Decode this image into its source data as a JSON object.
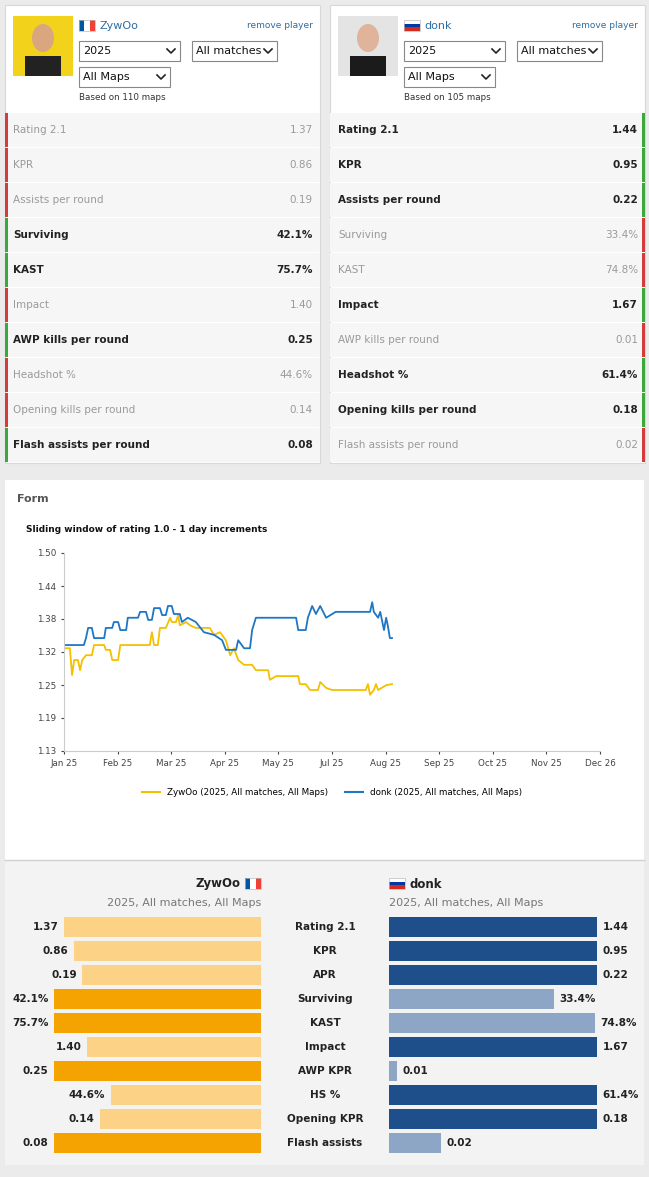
{
  "players": [
    {
      "name": "ZywOo",
      "remove": "remove player",
      "filters": [
        "2025",
        "All matches",
        "All Maps"
      ],
      "note": "Based on 110 maps",
      "stats": [
        [
          "Rating 2.1",
          "1.37"
        ],
        [
          "KPR",
          "0.86"
        ],
        [
          "Assists per round",
          "0.19"
        ],
        [
          "Surviving",
          "42.1%"
        ],
        [
          "KAST",
          "75.7%"
        ],
        [
          "Impact",
          "1.40"
        ],
        [
          "AWP kills per round",
          "0.25"
        ],
        [
          "Headshot %",
          "44.6%"
        ],
        [
          "Opening kills per round",
          "0.14"
        ],
        [
          "Flash assists per round",
          "0.08"
        ]
      ]
    },
    {
      "name": "donk",
      "remove": "remove player",
      "filters": [
        "2025",
        "All matches",
        "All Maps"
      ],
      "note": "Based on 105 maps",
      "stats": [
        [
          "Rating 2.1",
          "1.44"
        ],
        [
          "KPR",
          "0.95"
        ],
        [
          "Assists per round",
          "0.22"
        ],
        [
          "Surviving",
          "33.4%"
        ],
        [
          "KAST",
          "74.8%"
        ],
        [
          "Impact",
          "1.67"
        ],
        [
          "AWP kills per round",
          "0.01"
        ],
        [
          "Headshot %",
          "61.4%"
        ],
        [
          "Opening kills per round",
          "0.18"
        ],
        [
          "Flash assists per round",
          "0.02"
        ]
      ]
    }
  ],
  "section": "Form",
  "chart_data": {
    "type": "line",
    "title": "Sliding window of rating 1.0 - 1 day increments",
    "xlim": [
      0,
      10
    ],
    "xticks": [
      {
        "value": 0,
        "label": "Jan 25"
      },
      {
        "value": 1,
        "label": "Feb 25"
      },
      {
        "value": 2,
        "label": "Mar 25"
      },
      {
        "value": 3,
        "label": "Apr 25"
      },
      {
        "value": 4,
        "label": "May 25"
      },
      {
        "value": 5,
        "label": "Jul 25"
      },
      {
        "value": 6,
        "label": "Aug 25"
      },
      {
        "value": 7,
        "label": "Sep 25"
      },
      {
        "value": 8,
        "label": "Oct 25"
      },
      {
        "value": 9,
        "label": "Nov 25"
      },
      {
        "value": 10,
        "label": "Dec 26"
      }
    ],
    "ylim": [
      1.13,
      1.5
    ],
    "yticks": [
      1.13,
      {
        "value": 1.1917,
        "label": "1.19"
      },
      {
        "value": 1.2533,
        "label": "1.25"
      },
      {
        "value": 1.3155,
        "label": "1.32"
      },
      {
        "value": 1.3767,
        "label": "1.38"
      },
      {
        "value": 1.4383,
        "label": "1.44"
      },
      {
        "value": 1.5,
        "label": "1.50"
      }
    ],
    "grid": false,
    "legend": "lower center",
    "series": [
      {
        "name": "ZywOo (2025, All matches, All Maps)",
        "color": "#f5c000",
        "x": [
          0,
          0.11,
          0.15,
          0.19,
          0.26,
          0.3,
          0.34,
          0.41,
          0.52,
          0.56,
          0.75,
          0.78,
          0.86,
          0.9,
          1.01,
          1.05,
          1.6,
          1.64,
          1.68,
          1.75,
          1.79,
          1.9,
          1.98,
          2.01,
          2.09,
          2.13,
          2.16,
          2.28,
          2.35,
          2.46,
          2.72,
          2.8,
          2.91,
          3.02,
          3.1,
          3.17,
          3.25,
          3.36,
          3.51,
          3.58,
          3.81,
          3.84,
          3.96,
          4.37,
          4.4,
          4.51,
          4.59,
          4.74,
          4.78,
          4.89,
          5.0,
          5.63,
          5.67,
          5.71,
          5.78,
          5.82,
          5.86,
          6.01,
          6.12
        ],
        "values": [
          1.322,
          1.322,
          1.272,
          1.3,
          1.3,
          1.281,
          1.3,
          1.309,
          1.309,
          1.328,
          1.328,
          1.319,
          1.319,
          1.3,
          1.3,
          1.328,
          1.328,
          1.352,
          1.328,
          1.328,
          1.36,
          1.36,
          1.379,
          1.371,
          1.371,
          1.384,
          1.365,
          1.371,
          1.365,
          1.36,
          1.36,
          1.347,
          1.352,
          1.337,
          1.309,
          1.322,
          1.3,
          1.291,
          1.291,
          1.281,
          1.281,
          1.263,
          1.27,
          1.27,
          1.255,
          1.255,
          1.244,
          1.244,
          1.259,
          1.248,
          1.244,
          1.244,
          1.255,
          1.235,
          1.244,
          1.255,
          1.244,
          1.253,
          1.255
        ]
      },
      {
        "name": "donk (2025, All matches, All Maps)",
        "color": "#1f77c4",
        "x": [
          0,
          0.37,
          0.41,
          0.45,
          0.52,
          0.56,
          0.75,
          0.78,
          0.9,
          0.93,
          1.01,
          1.05,
          1.16,
          1.19,
          1.38,
          1.42,
          1.53,
          1.57,
          1.64,
          1.68,
          1.79,
          1.83,
          1.9,
          1.94,
          2.01,
          2.05,
          2.16,
          2.2,
          2.31,
          2.46,
          2.61,
          2.8,
          2.95,
          3.02,
          3.21,
          3.25,
          3.36,
          3.47,
          3.51,
          3.58,
          4.33,
          4.37,
          4.51,
          4.55,
          4.63,
          4.7,
          4.78,
          4.89,
          5.07,
          5.71,
          5.75,
          5.78,
          5.86,
          5.9,
          5.97,
          6.01,
          6.04,
          6.08,
          6.12
        ],
        "values": [
          1.328,
          1.328,
          1.341,
          1.36,
          1.36,
          1.341,
          1.341,
          1.36,
          1.36,
          1.371,
          1.371,
          1.356,
          1.356,
          1.379,
          1.379,
          1.39,
          1.39,
          1.375,
          1.375,
          1.397,
          1.397,
          1.384,
          1.384,
          1.401,
          1.401,
          1.386,
          1.386,
          1.371,
          1.379,
          1.371,
          1.352,
          1.347,
          1.337,
          1.319,
          1.319,
          1.337,
          1.322,
          1.322,
          1.356,
          1.379,
          1.379,
          1.356,
          1.356,
          1.379,
          1.401,
          1.386,
          1.401,
          1.379,
          1.39,
          1.39,
          1.408,
          1.39,
          1.379,
          1.39,
          1.356,
          1.379,
          1.365,
          1.341,
          1.341
        ]
      }
    ]
  },
  "comparison": {
    "subtitles": [
      "2025, All matches, All Maps",
      "2025, All matches, All Maps"
    ],
    "colors": [
      [
        "#f5a300",
        "#fbd286"
      ],
      [
        "#1f4f8a",
        "#8ea6c6"
      ]
    ],
    "rows": [
      {
        "label": "Rating 2.1",
        "values": [
          1.37,
          1.44
        ],
        "value_labels": [
          "1.37",
          "1.44"
        ],
        "xlim": [
          0,
          1.44
        ]
      },
      {
        "label": "KPR",
        "values": [
          0.86,
          0.95
        ],
        "value_labels": [
          "0.86",
          "0.95"
        ],
        "xlim": [
          0,
          0.95
        ]
      },
      {
        "label": "APR",
        "values": [
          0.19,
          0.22
        ],
        "value_labels": [
          "0.19",
          "0.22"
        ],
        "xlim": [
          0,
          0.22
        ]
      },
      {
        "label": "Surviving",
        "values": [
          42.1,
          33.4
        ],
        "value_labels": [
          "42.1%",
          "33.4%"
        ],
        "xlim": [
          0,
          42.1
        ]
      },
      {
        "label": "KAST",
        "values": [
          75.7,
          74.8
        ],
        "value_labels": [
          "75.7%",
          "74.8%"
        ],
        "xlim": [
          0,
          75.7
        ]
      },
      {
        "label": "Impact",
        "values": [
          1.4,
          1.67
        ],
        "value_labels": [
          "1.40",
          "1.67"
        ],
        "xlim": [
          0,
          1.67
        ]
      },
      {
        "label": "AWP KPR",
        "values": [
          0.25,
          0.01
        ],
        "value_labels": [
          "0.25",
          "0.01"
        ],
        "xlim": [
          0,
          0.25
        ]
      },
      {
        "label": "HS %",
        "values": [
          44.6,
          61.4
        ],
        "value_labels": [
          "44.6%",
          "61.4%"
        ],
        "xlim": [
          0,
          61.4
        ]
      },
      {
        "label": "Opening KPR",
        "values": [
          0.14,
          0.18
        ],
        "value_labels": [
          "0.14",
          "0.18"
        ],
        "xlim": [
          0,
          0.18
        ]
      },
      {
        "label": "Flash assists",
        "values": [
          0.08,
          0.02
        ],
        "value_labels": [
          "0.08",
          "0.02"
        ],
        "xlim": [
          0,
          0.08
        ]
      }
    ]
  }
}
